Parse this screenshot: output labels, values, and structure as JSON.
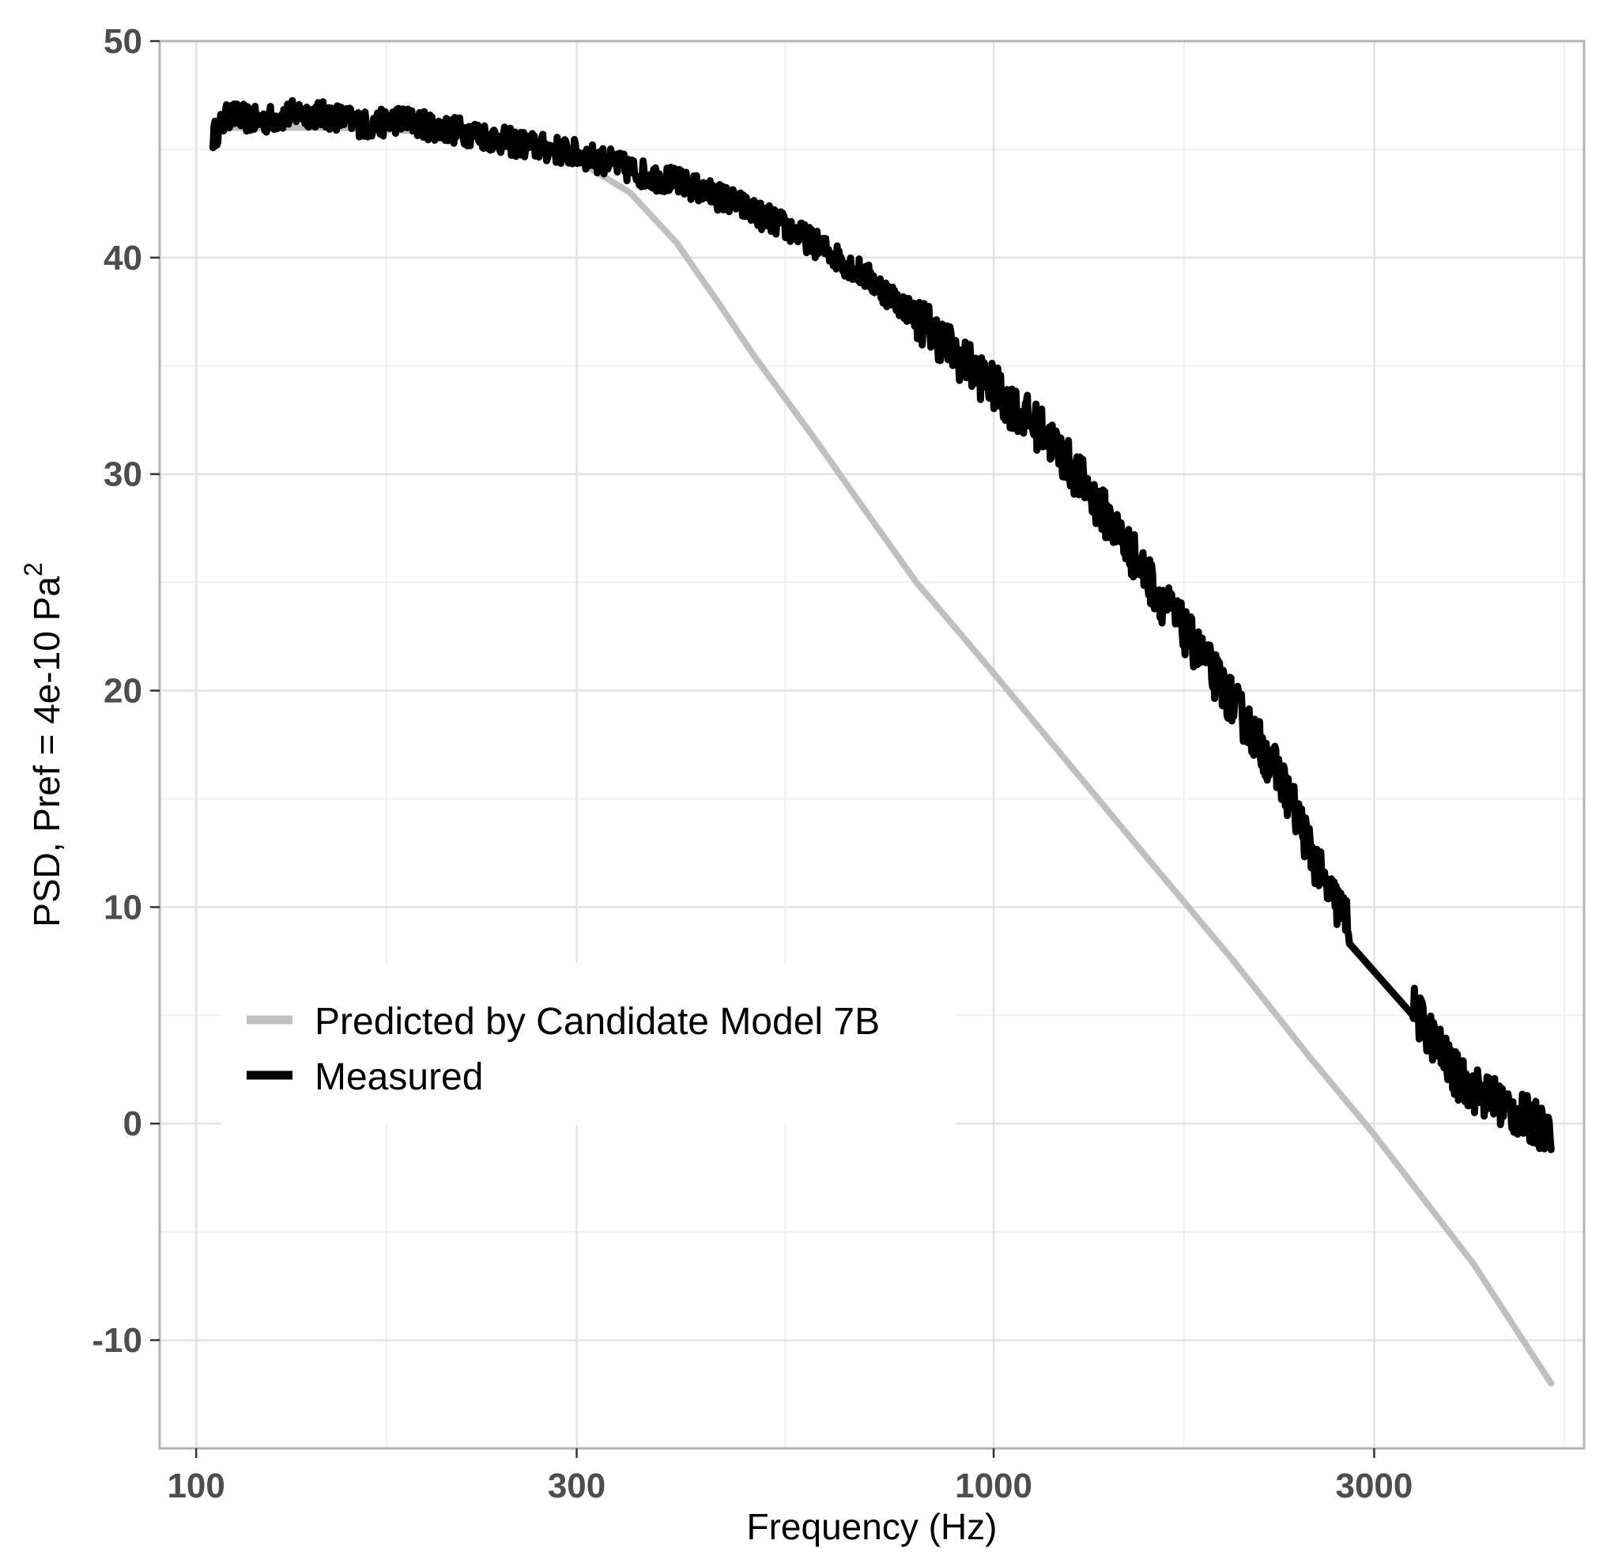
{
  "chart_data": {
    "type": "line",
    "title": "",
    "xlabel": "Frequency (Hz)",
    "ylabel_main": "PSD, Pref = 4e-10 Pa",
    "ylabel_superscript": "2",
    "x_scale": "log10",
    "xlim": [
      90,
      5500
    ],
    "ylim": [
      -15,
      50
    ],
    "x_ticks": [
      100,
      300,
      1000,
      3000
    ],
    "x_tick_labels": [
      "100",
      "300",
      "1000",
      "3000"
    ],
    "y_ticks": [
      -10,
      0,
      10,
      20,
      30,
      40,
      50
    ],
    "y_tick_labels": [
      "-10",
      "0",
      "10",
      "20",
      "30",
      "40",
      "50"
    ],
    "grid": true,
    "legend_position": "bottom-left",
    "series": [
      {
        "name": "Predicted by Candidate Model 7B",
        "color": "#c0c0c0",
        "x": [
          105,
          120,
          150,
          200,
          250,
          300,
          350,
          400,
          450,
          500,
          600,
          700,
          800,
          900,
          1000,
          1200,
          1500,
          2000,
          2500,
          3000,
          4000,
          5000
        ],
        "y": [
          46.0,
          46.0,
          46.0,
          45.8,
          45.3,
          44.5,
          43.0,
          40.7,
          38.0,
          35.5,
          31.5,
          28.0,
          25.0,
          22.8,
          20.8,
          17.3,
          13.0,
          7.5,
          3.0,
          -0.5,
          -6.5,
          -12.0
        ]
      },
      {
        "name": "Measured",
        "color": "#000000",
        "x": [
          105,
          110,
          120,
          135,
          150,
          165,
          180,
          200,
          220,
          250,
          280,
          300,
          330,
          360,
          400,
          430,
          470,
          500,
          550,
          600,
          650,
          700,
          750,
          800,
          850,
          900,
          950,
          1000,
          1050,
          1100,
          1150,
          1200,
          1300,
          1400,
          1500,
          1600,
          1700,
          1800,
          1900,
          2000,
          2100,
          2200,
          2300,
          2400,
          2500,
          2600,
          2800,
          3000,
          3200,
          3400,
          3600,
          3800,
          4000,
          4300,
          4600,
          5000
        ],
        "y": [
          45.6,
          46.6,
          46.3,
          46.7,
          46.5,
          46.1,
          46.4,
          46.0,
          45.8,
          45.3,
          45.0,
          44.8,
          44.4,
          43.9,
          43.5,
          43.1,
          42.6,
          42.1,
          41.4,
          40.6,
          39.8,
          39.0,
          38.1,
          37.3,
          36.4,
          35.5,
          34.7,
          34.0,
          33.2,
          32.6,
          32.0,
          31.2,
          29.5,
          27.8,
          26.2,
          24.6,
          23.2,
          21.9,
          20.6,
          19.4,
          18.2,
          17.0,
          15.8,
          14.3,
          12.6,
          11.0,
          9.2,
          7.9,
          6.4,
          5.0,
          3.6,
          2.2,
          1.6,
          1.0,
          0.3,
          -0.3
        ]
      }
    ]
  }
}
